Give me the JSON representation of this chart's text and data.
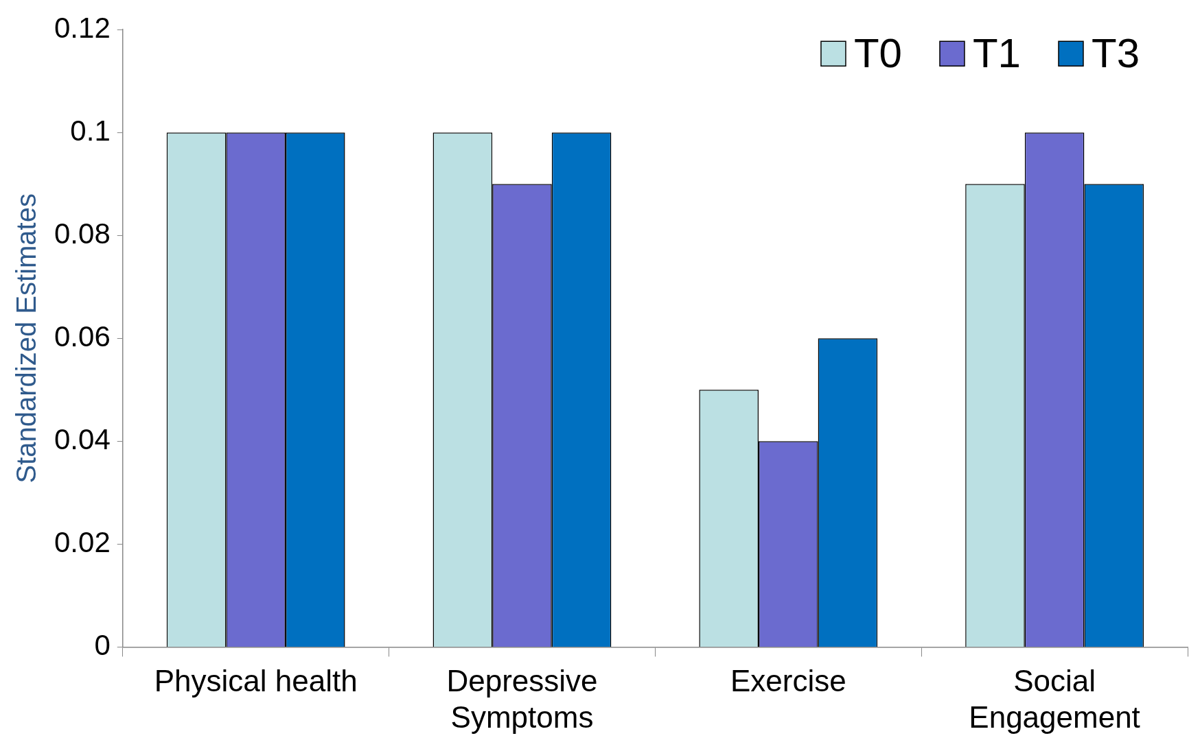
{
  "chart_data": {
    "type": "bar",
    "ylabel": "Standardized Estimates",
    "categories": [
      "Physical health",
      "Depressive Symptoms",
      "Exercise",
      "Social Engagement"
    ],
    "series": [
      {
        "name": "T0",
        "color": "#bbe0e3",
        "values": [
          0.1,
          0.1,
          0.05,
          0.09
        ]
      },
      {
        "name": "T1",
        "color": "#6b6bcf",
        "values": [
          0.1,
          0.09,
          0.04,
          0.1
        ]
      },
      {
        "name": "T3",
        "color": "#0070c0",
        "values": [
          0.1,
          0.1,
          0.06,
          0.09
        ]
      }
    ],
    "ylim": [
      0,
      0.12
    ],
    "yticks": [
      0,
      0.02,
      0.04,
      0.06,
      0.08,
      0.1,
      0.12
    ],
    "grid": false,
    "legend": "top right"
  }
}
